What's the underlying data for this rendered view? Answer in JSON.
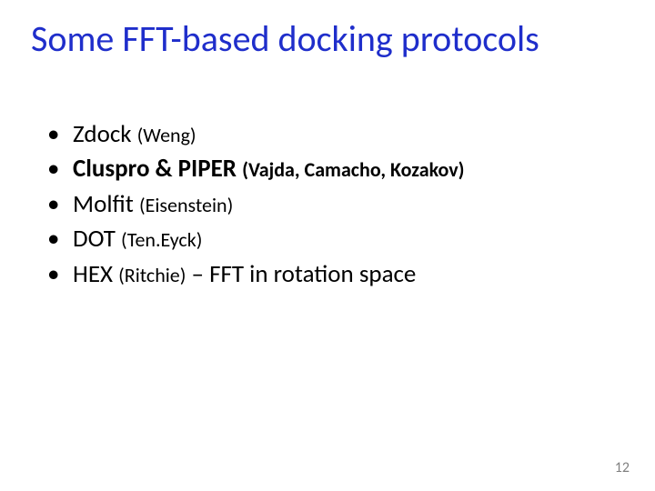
{
  "colors": {
    "title": "#1f2ecb",
    "body": "#000000",
    "pagenum": "#808080",
    "background": "#ffffff"
  },
  "typography": {
    "title_fontsize": 40,
    "body_fontsize": 27,
    "subauthor_fontsize": 22,
    "pagenum_fontsize": 16,
    "font_family": "Calibri"
  },
  "title": "Some FFT-based docking protocols",
  "items": [
    {
      "main": "Zdock ",
      "author": "(Weng)",
      "suffix": "",
      "main_bold": false,
      "author_bold": false
    },
    {
      "main": "Cluspro & PIPER ",
      "author": "(Vajda, Camacho, Kozakov)",
      "suffix": "",
      "main_bold": true,
      "author_bold": true
    },
    {
      "main": "Molfit ",
      "author": "(Eisenstein)",
      "suffix": "",
      "main_bold": false,
      "author_bold": false
    },
    {
      "main": "DOT ",
      "author": "(Ten.Eyck)",
      "suffix": "",
      "main_bold": false,
      "author_bold": false
    },
    {
      "main": "HEX ",
      "author": "(Ritchie)",
      "suffix": " – FFT in rotation space",
      "main_bold": false,
      "author_bold": false
    }
  ],
  "page_number": "12"
}
